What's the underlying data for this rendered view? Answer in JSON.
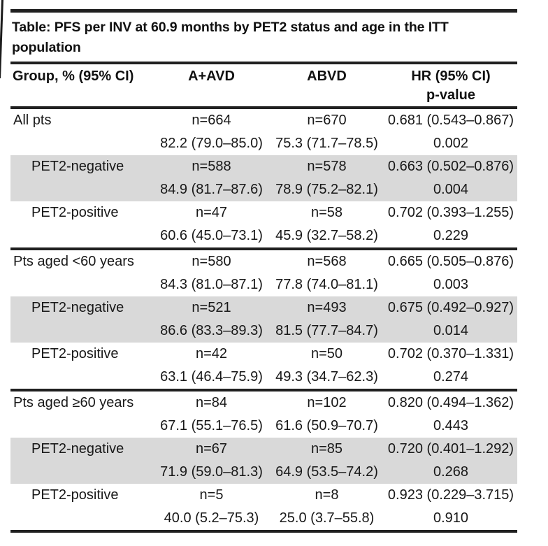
{
  "title_lines": [
    "Table: PFS per INV at 60.9 months by PET2 status and age in the ITT",
    "population"
  ],
  "columns": {
    "group": "Group, % (95% CI)",
    "a_avd": "A+AVD",
    "abvd": "ABVD",
    "hr_line1": "HR (95% CI)",
    "hr_line2": "p-value"
  },
  "colors": {
    "row_shade": "#d9d9d9",
    "rule": "#202020",
    "text": "#181818"
  },
  "sections": [
    {
      "rows": [
        {
          "group": "All pts",
          "n_a_avd": "n=664",
          "n_abvd": "n=670",
          "hr": "0.681 (0.543–0.867)",
          "pct_a_avd": "82.2 (79.0–85.0)",
          "pct_abvd": "75.3 (71.7–78.5)",
          "p_value": "0.002"
        },
        {
          "group": "PET2-negative",
          "n_a_avd": "n=588",
          "n_abvd": "n=578",
          "hr": "0.663 (0.502–0.876)",
          "pct_a_avd": "84.9 (81.7–87.6)",
          "pct_abvd": "78.9 (75.2–82.1)",
          "p_value": "0.004"
        },
        {
          "group": "PET2-positive",
          "n_a_avd": "n=47",
          "n_abvd": "n=58",
          "hr": "0.702 (0.393–1.255)",
          "pct_a_avd": "60.6 (45.0–73.1)",
          "pct_abvd": "45.9 (32.7–58.2)",
          "p_value": "0.229"
        }
      ]
    },
    {
      "rows": [
        {
          "group": "Pts aged <60 years",
          "n_a_avd": "n=580",
          "n_abvd": "n=568",
          "hr": "0.665 (0.505–0.876)",
          "pct_a_avd": "84.3 (81.0–87.1)",
          "pct_abvd": "77.8 (74.0–81.1)",
          "p_value": "0.003"
        },
        {
          "group": "PET2-negative",
          "n_a_avd": "n=521",
          "n_abvd": "n=493",
          "hr": "0.675 (0.492–0.927)",
          "pct_a_avd": "86.6 (83.3–89.3)",
          "pct_abvd": "81.5 (77.7–84.7)",
          "p_value": "0.014"
        },
        {
          "group": "PET2-positive",
          "n_a_avd": "n=42",
          "n_abvd": "n=50",
          "hr": "0.702 (0.370–1.331)",
          "pct_a_avd": "63.1 (46.4–75.9)",
          "pct_abvd": "49.3 (34.7–62.3)",
          "p_value": "0.274"
        }
      ]
    },
    {
      "rows": [
        {
          "group": "Pts aged ≥60 years",
          "n_a_avd": "n=84",
          "n_abvd": "n=102",
          "hr": "0.820 (0.494–1.362)",
          "pct_a_avd": "67.1 (55.1–76.5)",
          "pct_abvd": "61.6 (50.9–70.7)",
          "p_value": "0.443"
        },
        {
          "group": "PET2-negative",
          "n_a_avd": "n=67",
          "n_abvd": "n=85",
          "hr": "0.720 (0.401–1.292)",
          "pct_a_avd": "71.9 (59.0–81.3)",
          "pct_abvd": "64.9 (53.5–74.2)",
          "p_value": "0.268"
        },
        {
          "group": "PET2-positive",
          "n_a_avd": "n=5",
          "n_abvd": "n=8",
          "hr": "0.923 (0.229–3.715)",
          "pct_a_avd": "40.0 (5.2–75.3)",
          "pct_abvd": "25.0 (3.7–55.8)",
          "p_value": "0.910"
        }
      ]
    }
  ]
}
